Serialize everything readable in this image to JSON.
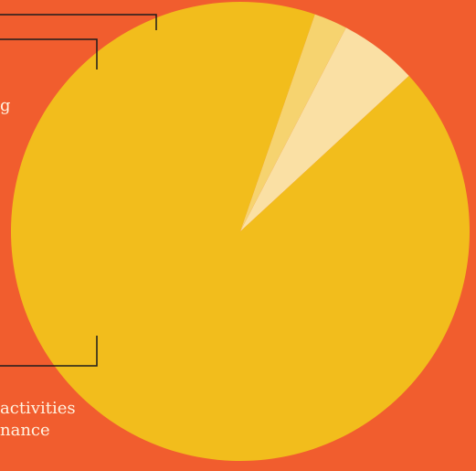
{
  "chart_data": {
    "type": "pie",
    "start_angle_deg": 19,
    "direction": "counterclockwise",
    "slices": [
      {
        "value": 0.901,
        "color": "#f2bd1c",
        "label": ""
      },
      {
        "value": 0.054,
        "color": "#fae0a4",
        "label": "g"
      },
      {
        "value": 0.023,
        "color": "#f6d36f",
        "label": ""
      }
    ],
    "labels": {
      "top_left_fragment": "g",
      "bottom_left_fragment_line1": "activities",
      "bottom_left_fragment_line2": "nance"
    },
    "title": "",
    "legend": "none"
  }
}
